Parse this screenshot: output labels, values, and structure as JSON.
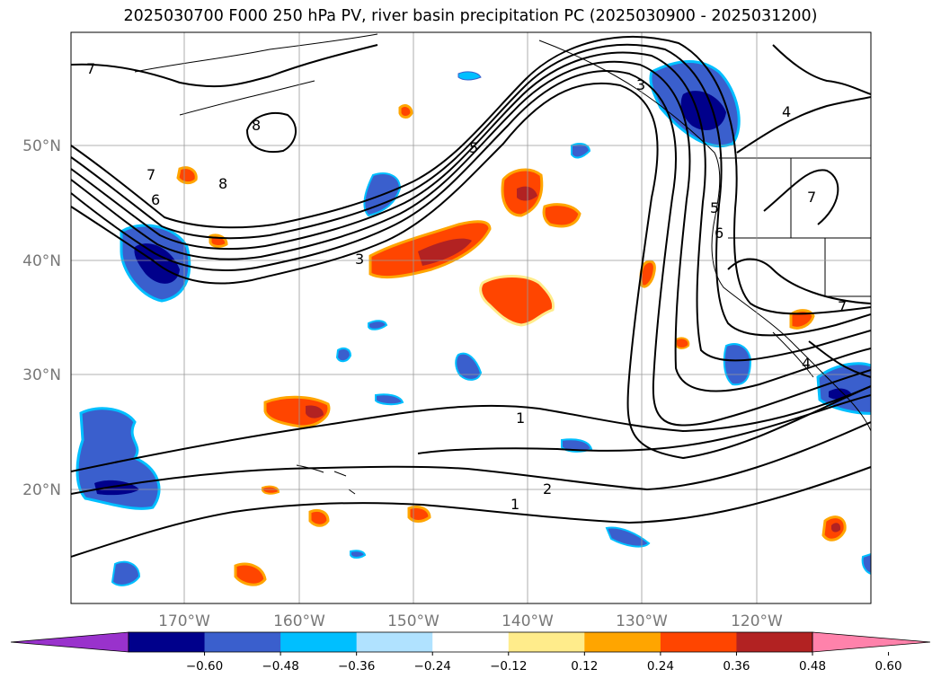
{
  "title": "2025030700 F000 250 hPa PV, river basin precipitation PC (2025030900 - 2025031200)",
  "lat_labels": [
    "50°N",
    "40°N",
    "30°N",
    "20°N"
  ],
  "lon_labels": [
    "170°W",
    "160°W",
    "150°W",
    "140°W",
    "130°W",
    "120°W"
  ],
  "colorbar": {
    "ticks": [
      "−0.60",
      "−0.48",
      "−0.36",
      "−0.24",
      "−0.12",
      "0.12",
      "0.24",
      "0.36",
      "0.48",
      "0.60"
    ],
    "colors": [
      "#9932cc",
      "#00008b",
      "#3a5fcd",
      "#00bfff",
      "#b0e2ff",
      "#ffffff",
      "#ffec8b",
      "#ffa500",
      "#ff4500",
      "#b22222",
      "#ff82ab"
    ]
  },
  "contour_labels": {
    "c7a": "7",
    "c8a": "8",
    "c8b": "8",
    "c7b": "7",
    "c6a": "6",
    "c3a": "3",
    "c5a": "5",
    "c3b": "3",
    "c4a": "4",
    "c5b": "5",
    "c6b": "6",
    "c7c": "7",
    "c7d": "7",
    "c4b": "4",
    "c1a": "1",
    "c2a": "2",
    "c1b": "1"
  }
}
